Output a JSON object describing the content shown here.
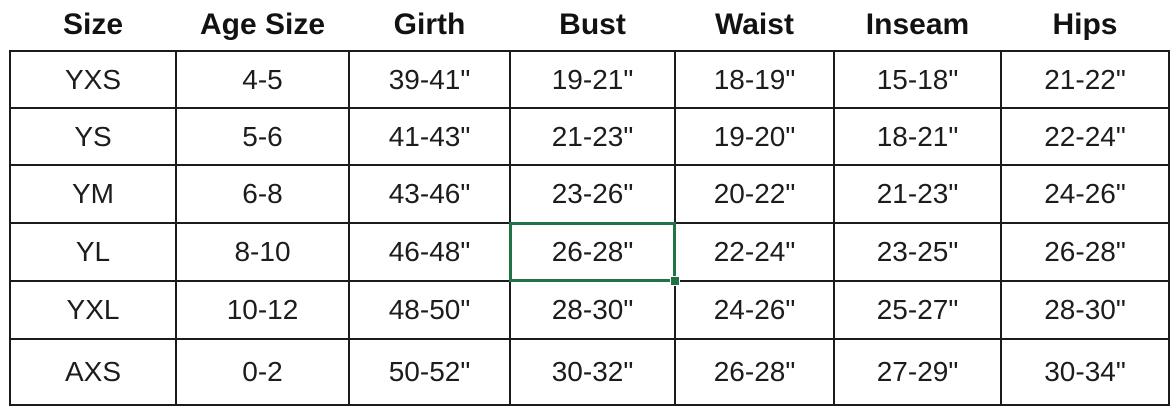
{
  "table": {
    "columns": [
      {
        "key": "size",
        "label": "Size"
      },
      {
        "key": "age",
        "label": "Age Size"
      },
      {
        "key": "girth",
        "label": "Girth"
      },
      {
        "key": "bust",
        "label": "Bust"
      },
      {
        "key": "waist",
        "label": "Waist"
      },
      {
        "key": "inseam",
        "label": "Inseam"
      },
      {
        "key": "hips",
        "label": "Hips"
      }
    ],
    "rows": [
      {
        "size": "YXS",
        "age": "4-5",
        "girth": "39-41\"",
        "bust": "19-21\"",
        "waist": "18-19\"",
        "inseam": "15-18\"",
        "hips": "21-22\""
      },
      {
        "size": "YS",
        "age": "5-6",
        "girth": "41-43\"",
        "bust": "21-23\"",
        "waist": "19-20\"",
        "inseam": "18-21\"",
        "hips": "22-24\""
      },
      {
        "size": "YM",
        "age": "6-8",
        "girth": "43-46\"",
        "bust": "23-26\"",
        "waist": "20-22\"",
        "inseam": "21-23\"",
        "hips": "24-26\""
      },
      {
        "size": "YL",
        "age": "8-10",
        "girth": "46-48\"",
        "bust": "26-28\"",
        "waist": "22-24\"",
        "inseam": "23-25\"",
        "hips": "26-28\""
      },
      {
        "size": "YXL",
        "age": "10-12",
        "girth": "48-50\"",
        "bust": "28-30\"",
        "waist": "24-26\"",
        "inseam": "25-27\"",
        "hips": "28-30\""
      },
      {
        "size": "AXS",
        "age": "0-2",
        "girth": "50-52\"",
        "bust": "30-32\"",
        "waist": "26-28\"",
        "inseam": "27-29\"",
        "hips": "30-34\""
      }
    ],
    "selection": {
      "row_index": 3,
      "column_key": "bust",
      "value": "26-28\""
    }
  },
  "colors": {
    "selection_border": "#217346",
    "grid_border": "#1b1b1b",
    "text": "#1c1c1c",
    "background": "#ffffff"
  }
}
